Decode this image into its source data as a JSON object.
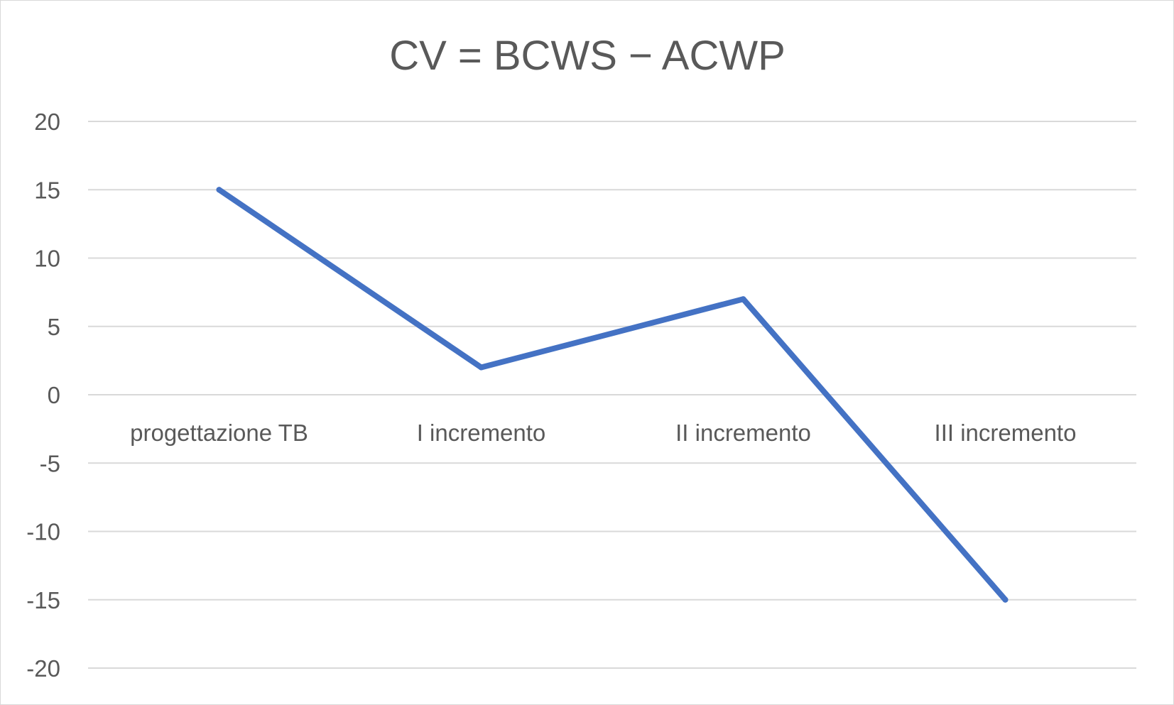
{
  "chart_data": {
    "type": "line",
    "title": "CV = BCWS − ACWP",
    "categories": [
      "progettazione TB",
      "I incremento",
      "II incremento",
      "III incremento"
    ],
    "series": [
      {
        "values": [
          15,
          2,
          7,
          -15
        ]
      }
    ],
    "y_ticks": [
      "20",
      "15",
      "10",
      "5",
      "0",
      "-5",
      "-10",
      "-15",
      "-20"
    ],
    "ylim": [
      -20,
      20
    ],
    "grid": true,
    "legend": false,
    "colors": {
      "series": "#4472c4",
      "grid": "#d9d9d9",
      "text": "#595959"
    }
  }
}
